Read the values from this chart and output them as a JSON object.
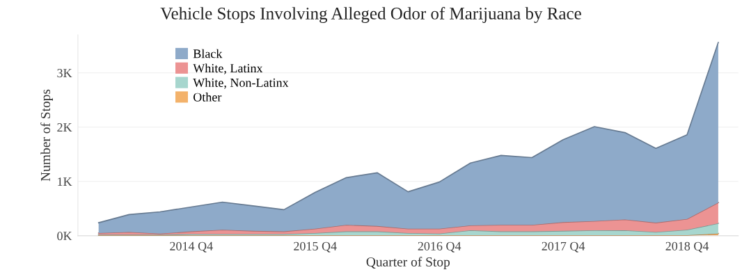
{
  "chart_data": {
    "type": "area",
    "title": "Vehicle Stops Involving Alleged Odor of Marijuana by Race",
    "xlabel": "Quarter of Stop",
    "ylabel": "Number of Stops",
    "x": [
      "2014-01",
      "2014-04",
      "2014-07",
      "2014-10",
      "2015-01",
      "2015-04",
      "2015-07",
      "2015-10",
      "2016-01",
      "2016-04",
      "2016-07",
      "2016-10",
      "2017-01",
      "2017-04",
      "2017-07",
      "2017-10",
      "2018-01",
      "2018-04",
      "2018-07",
      "2018-10",
      "2019-01"
    ],
    "stacked": true,
    "series": [
      {
        "name": "Other",
        "color": "#f3b26b",
        "values": [
          10,
          10,
          10,
          10,
          10,
          10,
          10,
          10,
          10,
          10,
          10,
          10,
          10,
          10,
          10,
          10,
          10,
          10,
          10,
          10,
          40
        ]
      },
      {
        "name": "White, Non-Latinx",
        "color": "#a7d6ce",
        "values": [
          10,
          10,
          10,
          20,
          20,
          20,
          20,
          40,
          70,
          70,
          40,
          30,
          90,
          70,
          70,
          80,
          90,
          90,
          60,
          100,
          190
        ]
      },
      {
        "name": "White, Latinx",
        "color": "#ec9393",
        "values": [
          30,
          50,
          20,
          50,
          80,
          60,
          50,
          80,
          120,
          100,
          80,
          90,
          90,
          120,
          120,
          160,
          170,
          200,
          170,
          200,
          380
        ]
      },
      {
        "name": "Black",
        "color": "#8eaac9",
        "values": [
          190,
          320,
          400,
          450,
          510,
          460,
          400,
          670,
          870,
          980,
          680,
          860,
          1150,
          1280,
          1240,
          1520,
          1740,
          1600,
          1370,
          1550,
          2950
        ]
      }
    ],
    "xlim": [
      "2013-11",
      "2019-03"
    ],
    "xticks": [
      {
        "value": "2014-10",
        "label": "2014 Q4"
      },
      {
        "value": "2015-10",
        "label": "2015 Q4"
      },
      {
        "value": "2016-10",
        "label": "2016 Q4"
      },
      {
        "value": "2017-10",
        "label": "2017 Q4"
      },
      {
        "value": "2018-10",
        "label": "2018 Q4"
      }
    ],
    "ylim": [
      0,
      3700
    ],
    "yticks": [
      {
        "value": 0,
        "label": "0K"
      },
      {
        "value": 1000,
        "label": "1K"
      },
      {
        "value": 2000,
        "label": "2K"
      },
      {
        "value": 3000,
        "label": "3K"
      }
    ],
    "grid": "y",
    "legend": "top left"
  }
}
